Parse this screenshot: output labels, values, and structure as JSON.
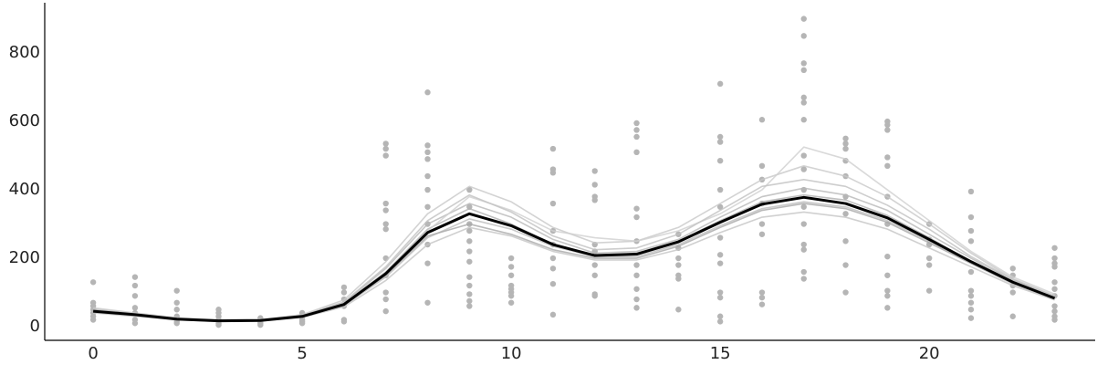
{
  "chart_data": {
    "type": "line",
    "x": [
      0,
      1,
      2,
      3,
      4,
      5,
      6,
      7,
      8,
      9,
      10,
      11,
      12,
      13,
      14,
      15,
      16,
      17,
      18,
      19,
      20,
      21,
      22,
      23
    ],
    "xlim": [
      -1.16,
      23.97
    ],
    "ylim": [
      -40,
      947
    ],
    "xticks": [
      0,
      5,
      10,
      15,
      20
    ],
    "yticks": [
      0,
      200,
      400,
      600,
      800
    ],
    "grid": false,
    "series": [
      {
        "color": "#c4c4c4",
        "values": [
          40,
          30,
          20,
          15,
          16,
          27,
          58,
          135,
          240,
          290,
          265,
          220,
          195,
          195,
          225,
          275,
          320,
          335,
          320,
          285,
          230,
          175,
          120,
          78
        ]
      },
      {
        "color": "#b8b8b8",
        "values": [
          50,
          38,
          24,
          18,
          19,
          32,
          70,
          170,
          300,
          360,
          320,
          255,
          215,
          220,
          255,
          320,
          380,
          405,
          385,
          340,
          270,
          200,
          135,
          85
        ]
      },
      {
        "color": "#bdbdbd",
        "values": [
          42,
          33,
          21,
          16,
          17,
          29,
          62,
          145,
          260,
          315,
          285,
          235,
          205,
          205,
          240,
          295,
          345,
          365,
          350,
          310,
          250,
          185,
          125,
          80
        ]
      },
      {
        "color": "#c8c8c8",
        "values": [
          55,
          40,
          26,
          20,
          21,
          35,
          78,
          190,
          330,
          410,
          365,
          290,
          245,
          250,
          290,
          360,
          430,
          470,
          440,
          380,
          300,
          215,
          140,
          90
        ]
      },
      {
        "color": "#b0b0b0",
        "values": [
          48,
          36,
          23,
          17,
          18,
          31,
          67,
          160,
          285,
          345,
          300,
          240,
          205,
          215,
          250,
          310,
          365,
          385,
          370,
          325,
          260,
          190,
          128,
          82
        ]
      },
      {
        "color": "#d0d0d0",
        "values": [
          46,
          34,
          22,
          17,
          18,
          30,
          66,
          150,
          280,
          380,
          340,
          280,
          260,
          250,
          280,
          330,
          400,
          525,
          490,
          400,
          310,
          220,
          145,
          95
        ]
      },
      {
        "color": "#a8a8a8",
        "values": [
          44,
          35,
          22,
          17,
          18,
          30,
          63,
          150,
          265,
          300,
          270,
          225,
          200,
          200,
          235,
          290,
          340,
          360,
          345,
          305,
          245,
          185,
          128,
          84
        ]
      },
      {
        "color": "#c0c0c0",
        "values": [
          52,
          37,
          24,
          18,
          19,
          33,
          72,
          175,
          310,
          385,
          335,
          265,
          225,
          230,
          270,
          340,
          410,
          430,
          410,
          355,
          285,
          205,
          138,
          88
        ]
      },
      {
        "color": "#000000",
        "values": [
          45,
          35,
          22,
          17,
          18,
          30,
          65,
          155,
          275,
          330,
          295,
          240,
          208,
          212,
          248,
          305,
          358,
          378,
          360,
          318,
          255,
          190,
          130,
          83
        ]
      }
    ],
    "observation_color": "#b5b5b5",
    "observations": [
      {
        "x": 0,
        "values": [
          130,
          70,
          60,
          50,
          40,
          30,
          20
        ]
      },
      {
        "x": 1,
        "values": [
          145,
          120,
          90,
          55,
          40,
          20,
          10
        ]
      },
      {
        "x": 2,
        "values": [
          105,
          70,
          50,
          30,
          15,
          10
        ]
      },
      {
        "x": 3,
        "values": [
          50,
          40,
          30,
          20,
          10,
          5
        ]
      },
      {
        "x": 4,
        "values": [
          25,
          15,
          10,
          5
        ]
      },
      {
        "x": 5,
        "values": [
          40,
          30,
          20,
          15,
          10
        ]
      },
      {
        "x": 6,
        "values": [
          115,
          100,
          80,
          60,
          20,
          15
        ]
      },
      {
        "x": 7,
        "values": [
          535,
          520,
          500,
          360,
          340,
          300,
          285,
          200,
          150,
          100,
          80,
          45
        ]
      },
      {
        "x": 8,
        "values": [
          685,
          530,
          510,
          490,
          440,
          400,
          350,
          300,
          240,
          185,
          70
        ]
      },
      {
        "x": 9,
        "values": [
          400,
          350,
          300,
          280,
          250,
          220,
          190,
          145,
          120,
          95,
          75,
          60
        ]
      },
      {
        "x": 10,
        "values": [
          200,
          175,
          150,
          120,
          110,
          100,
          90,
          70
        ]
      },
      {
        "x": 11,
        "values": [
          520,
          460,
          450,
          360,
          280,
          240,
          200,
          170,
          125,
          35
        ]
      },
      {
        "x": 12,
        "values": [
          455,
          415,
          380,
          370,
          240,
          220,
          180,
          150,
          95,
          90
        ]
      },
      {
        "x": 13,
        "values": [
          595,
          575,
          555,
          510,
          345,
          320,
          250,
          180,
          150,
          110,
          80,
          55
        ]
      },
      {
        "x": 14,
        "values": [
          270,
          230,
          200,
          180,
          150,
          140,
          50
        ]
      },
      {
        "x": 15,
        "values": [
          710,
          555,
          540,
          485,
          400,
          350,
          260,
          210,
          185,
          100,
          85,
          30,
          15
        ]
      },
      {
        "x": 16,
        "values": [
          605,
          470,
          430,
          360,
          300,
          270,
          100,
          85,
          65
        ]
      },
      {
        "x": 17,
        "values": [
          900,
          850,
          770,
          750,
          670,
          655,
          605,
          500,
          460,
          400,
          350,
          300,
          240,
          225,
          160,
          140
        ]
      },
      {
        "x": 18,
        "values": [
          550,
          535,
          520,
          485,
          440,
          380,
          330,
          250,
          180,
          100
        ]
      },
      {
        "x": 19,
        "values": [
          600,
          590,
          575,
          495,
          470,
          380,
          300,
          205,
          150,
          105,
          90,
          55
        ]
      },
      {
        "x": 20,
        "values": [
          300,
          255,
          240,
          200,
          180,
          105
        ]
      },
      {
        "x": 21,
        "values": [
          395,
          320,
          280,
          250,
          160,
          105,
          90,
          70,
          50,
          25
        ]
      },
      {
        "x": 22,
        "values": [
          170,
          150,
          120,
          100,
          30
        ]
      },
      {
        "x": 23,
        "values": [
          230,
          200,
          185,
          175,
          130,
          110,
          90,
          60,
          45,
          30,
          20
        ]
      }
    ]
  }
}
